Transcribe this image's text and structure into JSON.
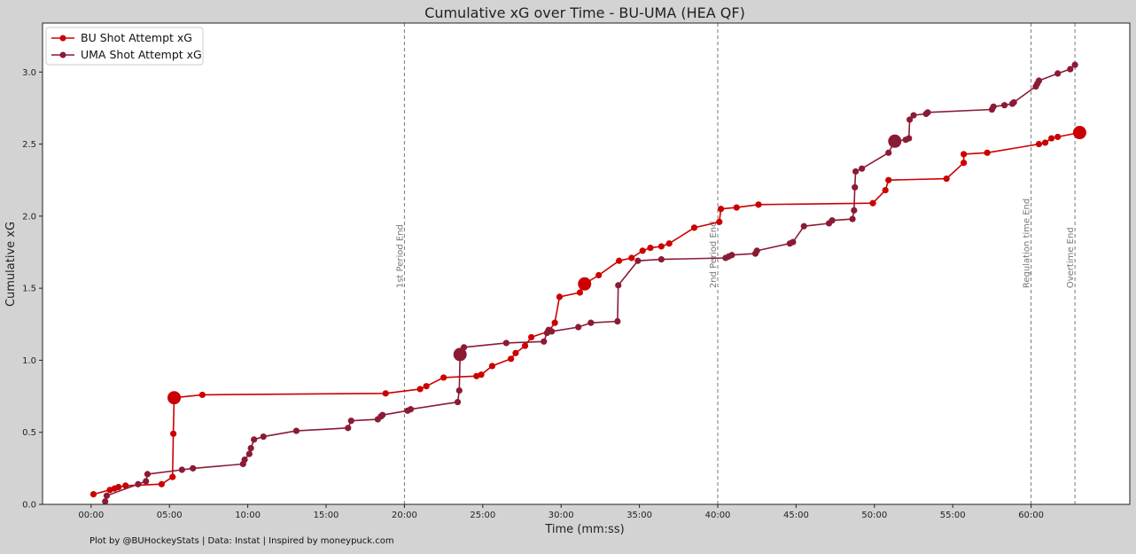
{
  "chart_data": {
    "type": "line",
    "title": "Cumulative xG over Time - BU-UMA (HEA QF)",
    "xlabel": "Time (mm:ss)",
    "ylabel": "Cumulative xG",
    "xlim": [
      -3.1,
      66.3
    ],
    "ylim": [
      0,
      3.34
    ],
    "x_unit": "minutes",
    "x_ticks": [
      0,
      5,
      10,
      15,
      20,
      25,
      30,
      35,
      40,
      45,
      50,
      55,
      60
    ],
    "x_tick_labels": [
      "00:00",
      "05:00",
      "10:00",
      "15:00",
      "20:00",
      "25:00",
      "30:00",
      "35:00",
      "40:00",
      "45:00",
      "50:00",
      "55:00",
      "60:00"
    ],
    "y_ticks": [
      0.0,
      0.5,
      1.0,
      1.5,
      2.0,
      2.5,
      3.0
    ],
    "y_tick_labels": [
      "0.0",
      "0.5",
      "1.0",
      "1.5",
      "2.0",
      "2.5",
      "3.0"
    ],
    "legend_position": "top-left",
    "grid": false,
    "vlines": [
      {
        "x": 20,
        "label": "1st Period End"
      },
      {
        "x": 40,
        "label": "2nd Period End"
      },
      {
        "x": 60,
        "label": "Regulation time End"
      },
      {
        "x": 62.8,
        "label": "Overtime End"
      }
    ],
    "series": [
      {
        "name": "BU Shot Attempt xG",
        "color": "#cc0000",
        "x": [
          0.15,
          1.2,
          1.5,
          1.75,
          2.2,
          4.5,
          5.2,
          5.25,
          5.3,
          7.1,
          18.8,
          21.0,
          21.4,
          22.5,
          24.6,
          24.9,
          25.6,
          26.8,
          27.1,
          27.7,
          28.1,
          29.2,
          29.6,
          29.9,
          31.2,
          31.5,
          32.4,
          33.7,
          34.5,
          35.2,
          35.7,
          36.4,
          36.9,
          38.5,
          40.1,
          40.2,
          41.2,
          42.6,
          49.9,
          50.7,
          50.9,
          54.6,
          55.7,
          55.7,
          57.2,
          60.5,
          60.9,
          61.3,
          61.7,
          63.1
        ],
        "y": [
          0.07,
          0.1,
          0.11,
          0.12,
          0.13,
          0.14,
          0.19,
          0.49,
          0.74,
          0.76,
          0.77,
          0.8,
          0.82,
          0.88,
          0.89,
          0.9,
          0.96,
          1.01,
          1.05,
          1.1,
          1.16,
          1.2,
          1.26,
          1.44,
          1.47,
          1.53,
          1.59,
          1.69,
          1.71,
          1.76,
          1.78,
          1.79,
          1.81,
          1.92,
          1.96,
          2.05,
          2.06,
          2.08,
          2.09,
          2.18,
          2.25,
          2.26,
          2.37,
          2.43,
          2.44,
          2.5,
          2.51,
          2.54,
          2.55,
          2.58
        ],
        "goals_x": [
          5.3,
          31.5,
          63.1
        ],
        "goals_y": [
          0.74,
          1.53,
          2.58
        ]
      },
      {
        "name": "UMA Shot Attempt xG",
        "color": "#8b1a35",
        "x": [
          0.9,
          1.0,
          3.0,
          3.5,
          3.6,
          5.8,
          6.5,
          9.7,
          9.8,
          10.1,
          10.2,
          10.4,
          11.0,
          13.1,
          16.4,
          16.6,
          18.3,
          18.5,
          18.6,
          20.2,
          20.4,
          23.4,
          23.5,
          23.55,
          23.8,
          26.5,
          28.9,
          29.1,
          29.2,
          29.4,
          31.1,
          31.9,
          33.6,
          33.65,
          34.9,
          36.4,
          40.5,
          40.7,
          40.9,
          42.4,
          42.5,
          44.6,
          44.8,
          45.5,
          47.1,
          47.3,
          48.6,
          48.7,
          48.75,
          48.8,
          49.2,
          50.9,
          51.3,
          52.0,
          52.2,
          52.25,
          52.5,
          53.3,
          53.4,
          57.5,
          57.6,
          58.3,
          58.8,
          58.9,
          60.3,
          60.4,
          60.5,
          61.7,
          62.5,
          62.8
        ],
        "y": [
          0.02,
          0.06,
          0.14,
          0.16,
          0.21,
          0.24,
          0.25,
          0.28,
          0.31,
          0.35,
          0.39,
          0.45,
          0.47,
          0.51,
          0.53,
          0.58,
          0.59,
          0.61,
          0.62,
          0.65,
          0.66,
          0.71,
          0.79,
          1.04,
          1.09,
          1.12,
          1.13,
          1.19,
          1.21,
          1.2,
          1.23,
          1.26,
          1.27,
          1.52,
          1.69,
          1.7,
          1.71,
          1.72,
          1.73,
          1.74,
          1.76,
          1.81,
          1.82,
          1.93,
          1.95,
          1.97,
          1.98,
          2.04,
          2.2,
          2.31,
          2.33,
          2.44,
          2.52,
          2.53,
          2.54,
          2.67,
          2.7,
          2.71,
          2.72,
          2.74,
          2.76,
          2.77,
          2.78,
          2.79,
          2.9,
          2.92,
          2.94,
          2.99,
          3.02,
          3.05
        ],
        "goals_x": [
          23.55,
          51.3
        ],
        "goals_y": [
          1.04,
          2.52
        ]
      }
    ]
  },
  "footer": {
    "credit": "Plot by @BUHockeyStats | Data: Instat | Inspired by moneypuck.com"
  }
}
